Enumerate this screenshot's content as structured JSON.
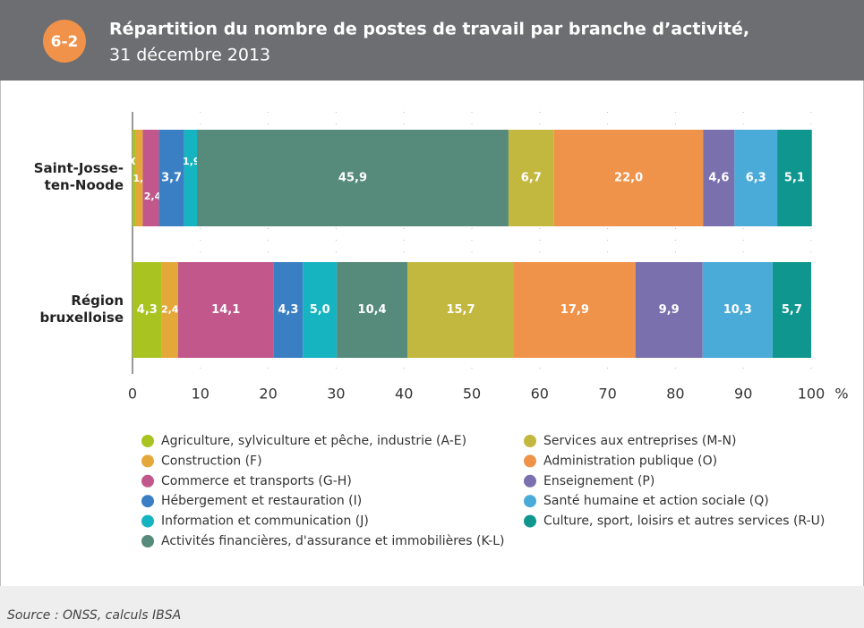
{
  "figure_number": "6-2",
  "chart_data": {
    "type": "stacked-bar-horizontal",
    "title": "Répartition du nombre de postes de travail par branche d’activité,",
    "subtitle": "31 décembre 2013",
    "categories": [
      "Saint-Josse-ten-Noode",
      "Région bruxelloise"
    ],
    "xlim": [
      0,
      100
    ],
    "xticks": [
      0,
      10,
      20,
      30,
      40,
      50,
      60,
      70,
      80,
      90,
      100
    ],
    "x_unit": "%",
    "grid": true,
    "series": [
      {
        "name": "Agriculture, sylviculture et pêche, industrie (A-E)",
        "color": "#a9c421",
        "values": [
          0.4,
          4.3
        ],
        "value_labels": [
          "0,4",
          "4,3"
        ]
      },
      {
        "name": "Construction (F)",
        "color": "#e4a83a",
        "values": [
          1.1,
          2.4
        ],
        "value_labels": [
          "1,1",
          "2,4"
        ]
      },
      {
        "name": "Commerce et transports (G-H)",
        "color": "#c1578a",
        "values": [
          2.4,
          14.1
        ],
        "value_labels": [
          "2,4",
          "14,1"
        ]
      },
      {
        "name": "Hébergement et restauration (I)",
        "color": "#3a7fc3",
        "values": [
          3.7,
          4.3
        ],
        "value_labels": [
          "3,7",
          "4,3"
        ]
      },
      {
        "name": "Information et communication (J)",
        "color": "#16b4c0",
        "values": [
          1.9,
          5.0
        ],
        "value_labels": [
          "1,9",
          "5,0"
        ]
      },
      {
        "name": "Activités financières, d'assurance et immobilières (K-L)",
        "color": "#568a7b",
        "values": [
          45.9,
          10.4
        ],
        "value_labels": [
          "45,9",
          "10,4"
        ]
      },
      {
        "name": "Services aux entreprises (M-N)",
        "color": "#c3b83f",
        "values": [
          6.7,
          15.7
        ],
        "value_labels": [
          "6,7",
          "15,7"
        ]
      },
      {
        "name": "Administration publique (O)",
        "color": "#f0934a",
        "values": [
          22.0,
          17.9
        ],
        "value_labels": [
          "22,0",
          "17,9"
        ]
      },
      {
        "name": "Enseignement (P)",
        "color": "#7b70ae",
        "values": [
          4.6,
          9.9
        ],
        "value_labels": [
          "4,6",
          "9,9"
        ]
      },
      {
        "name": "Santé humaine et action sociale (Q)",
        "color": "#4babd8",
        "values": [
          6.3,
          10.3
        ],
        "value_labels": [
          "6,3",
          "10,3"
        ]
      },
      {
        "name": "Culture, sport, loisirs et autres services (R-U)",
        "color": "#0f968f",
        "values": [
          5.1,
          5.7
        ],
        "value_labels": [
          "5,1",
          "5,7"
        ]
      }
    ],
    "source": "Source : ONSS, calculs IBSA"
  }
}
